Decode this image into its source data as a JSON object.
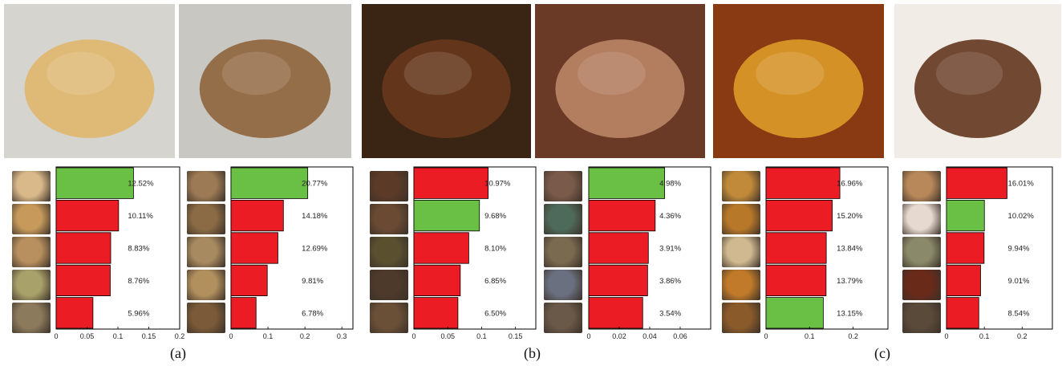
{
  "panel_labels": [
    "(a)",
    "(b)",
    "(c)"
  ],
  "hero_images": [
    {
      "icon": "chicken-sandwich-photo",
      "bg": "#d6d4cf",
      "accent": "#e0b567"
    },
    {
      "icon": "bread-loaf-photo",
      "bg": "#c9c7c2",
      "accent": "#8b5e34"
    },
    {
      "icon": "curry-rice-photo",
      "bg": "#3a2414",
      "accent": "#6b3a1c"
    },
    {
      "icon": "salad-plate-photo",
      "bg": "#6a3a26",
      "accent": "#c08a6a"
    },
    {
      "icon": "dumplings-in-sauce-photo",
      "bg": "#8a3a12",
      "accent": "#e0a22a"
    },
    {
      "icon": "fried-shrimp-photo",
      "bg": "#f1ede6",
      "accent": "#5a2a12"
    }
  ],
  "thumb_colors": [
    [
      "#d9b98a",
      "#c79a5c",
      "#b88f5e",
      "#a9a16a",
      "#8c7a5d"
    ],
    [
      "#9c7a55",
      "#8a6b45",
      "#a88a60",
      "#b2905e",
      "#7a5a38"
    ],
    [
      "#5b3a28",
      "#6a4a33",
      "#5a5030",
      "#4d3a2b",
      "#6b5038"
    ],
    [
      "#7a5a4a",
      "#4e6a5a",
      "#7a6a50",
      "#6b7080",
      "#6a5848"
    ],
    [
      "#c08a3a",
      "#b8782a",
      "#d0b890",
      "#c07a2a",
      "#8a5a2a"
    ],
    [
      "#b8885a",
      "#e6dad0",
      "#8a8a6a",
      "#6a2a1a",
      "#5a4a3a"
    ]
  ],
  "colors": {
    "green": "#6abf45",
    "red": "#ec1c24"
  },
  "chart_data": [
    {
      "type": "bar",
      "orientation": "horizontal",
      "panel": "(a)",
      "values": [
        0.1252,
        0.1011,
        0.0883,
        0.0876,
        0.0596
      ],
      "labels": [
        "12.52%",
        "10.11%",
        "8.83%",
        "8.76%",
        "5.96%"
      ],
      "correct": [
        true,
        false,
        false,
        false,
        false
      ],
      "xlim": [
        0,
        0.2
      ],
      "ticks": [
        0,
        0.05,
        0.1,
        0.15,
        0.2
      ],
      "tick_labels": [
        "0",
        "0.05",
        "0.1",
        "0.15",
        "0.2"
      ]
    },
    {
      "type": "bar",
      "orientation": "horizontal",
      "panel": "(a)",
      "values": [
        0.2077,
        0.1418,
        0.1269,
        0.0981,
        0.0678
      ],
      "labels": [
        "20.77%",
        "14.18%",
        "12.69%",
        "9.81%",
        "6.78%"
      ],
      "correct": [
        true,
        false,
        false,
        false,
        false
      ],
      "xlim": [
        0,
        0.33
      ],
      "ticks": [
        0,
        0.1,
        0.2,
        0.3
      ],
      "tick_labels": [
        "0",
        "0.1",
        "0.2",
        "0.3"
      ]
    },
    {
      "type": "bar",
      "orientation": "horizontal",
      "panel": "(b)",
      "values": [
        0.1097,
        0.0968,
        0.081,
        0.0685,
        0.065
      ],
      "labels": [
        "10.97%",
        "9.68%",
        "8.10%",
        "6.85%",
        "6.50%"
      ],
      "correct": [
        false,
        true,
        false,
        false,
        false
      ],
      "xlim": [
        0,
        0.18
      ],
      "ticks": [
        0,
        0.05,
        0.1,
        0.15
      ],
      "tick_labels": [
        "0",
        "0.05",
        "0.1",
        "0.15"
      ]
    },
    {
      "type": "bar",
      "orientation": "horizontal",
      "panel": "(b)",
      "values": [
        0.0498,
        0.0436,
        0.0391,
        0.0386,
        0.0354
      ],
      "labels": [
        "4.98%",
        "4.36%",
        "3.91%",
        "3.86%",
        "3.54%"
      ],
      "correct": [
        true,
        false,
        false,
        false,
        false
      ],
      "xlim": [
        0,
        0.08
      ],
      "ticks": [
        0,
        0.02,
        0.04,
        0.06
      ],
      "tick_labels": [
        "0",
        "0.02",
        "0.04",
        "0.06"
      ]
    },
    {
      "type": "bar",
      "orientation": "horizontal",
      "panel": "(c)",
      "values": [
        0.1696,
        0.152,
        0.1384,
        0.1379,
        0.1315
      ],
      "labels": [
        "16.96%",
        "15.20%",
        "13.84%",
        "13.79%",
        "13.15%"
      ],
      "correct": [
        false,
        false,
        false,
        false,
        true
      ],
      "xlim": [
        0,
        0.28
      ],
      "ticks": [
        0,
        0.1,
        0.2
      ],
      "tick_labels": [
        "0",
        "0.1",
        "0.2"
      ]
    },
    {
      "type": "bar",
      "orientation": "horizontal",
      "panel": "(c)",
      "values": [
        0.1601,
        0.1002,
        0.0994,
        0.0901,
        0.0854
      ],
      "labels": [
        "16.01%",
        "10.02%",
        "9.94%",
        "9.01%",
        "8.54%"
      ],
      "correct": [
        false,
        true,
        false,
        false,
        false
      ],
      "xlim": [
        0,
        0.28
      ],
      "ticks": [
        0,
        0.1,
        0.2
      ],
      "tick_labels": [
        "0",
        "0.1",
        "0.2"
      ]
    }
  ]
}
